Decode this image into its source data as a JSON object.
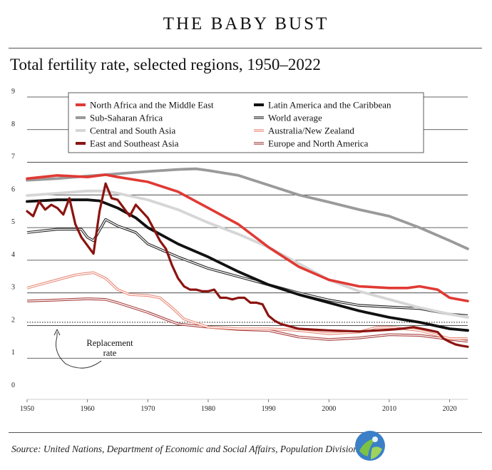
{
  "header": {
    "banner": "THE BABY BUST",
    "subtitle": "Total fertility rate, selected regions, 1950–2022"
  },
  "footer": {
    "source": "Source: United Nations, Department of Economic and Social Affairs, Population Division"
  },
  "colors": {
    "north_africa": "#e03a34",
    "sub_saharan": "#9a9a9a",
    "central_south_asia": "#d6d6d6",
    "east_se_asia": "#8b1410",
    "latin_america": "#111111",
    "world": "#222222",
    "aus_nz": "#e88a78",
    "europe_na": "#a84040",
    "grid": "#333333"
  },
  "chart_data": {
    "type": "line",
    "title": "Total fertility rate, selected regions, 1950–2022",
    "xlabel": "",
    "ylabel": "",
    "xlim": [
      1950,
      2023
    ],
    "ylim": [
      0,
      9
    ],
    "x_ticks": [
      1950,
      1960,
      1970,
      1980,
      1990,
      2000,
      2010,
      2020
    ],
    "y_ticks": [
      0,
      1,
      2,
      3,
      4,
      5,
      6,
      7,
      8,
      9
    ],
    "grid": true,
    "legend_position": "top",
    "annotation": {
      "replacement_level": 2.1,
      "label_line1": "Replacement",
      "label_line2": "rate"
    },
    "series": [
      {
        "name": "North Africa and the Middle East",
        "key": "north_africa",
        "style": "solid",
        "x": [
          1950,
          1955,
          1960,
          1963,
          1965,
          1970,
          1975,
          1980,
          1985,
          1990,
          1995,
          2000,
          2005,
          2010,
          2013,
          2015,
          2018,
          2020,
          2023
        ],
        "y": [
          6.5,
          6.6,
          6.55,
          6.62,
          6.55,
          6.4,
          6.1,
          5.6,
          5.1,
          4.4,
          3.8,
          3.4,
          3.2,
          3.15,
          3.15,
          3.2,
          3.1,
          2.85,
          2.75
        ]
      },
      {
        "name": "Sub-Saharan Africa",
        "key": "sub_saharan",
        "style": "solid",
        "x": [
          1950,
          1955,
          1960,
          1965,
          1970,
          1975,
          1978,
          1980,
          1985,
          1990,
          1995,
          2000,
          2005,
          2010,
          2015,
          2020,
          2023
        ],
        "y": [
          6.45,
          6.5,
          6.58,
          6.65,
          6.72,
          6.78,
          6.8,
          6.75,
          6.6,
          6.3,
          6.0,
          5.78,
          5.55,
          5.35,
          5.0,
          4.6,
          4.35
        ]
      },
      {
        "name": "Central and South Asia",
        "key": "central_south_asia",
        "style": "solid",
        "x": [
          1950,
          1955,
          1960,
          1963,
          1965,
          1970,
          1975,
          1980,
          1985,
          1990,
          1995,
          2000,
          2005,
          2010,
          2015,
          2020,
          2023
        ],
        "y": [
          5.98,
          6.05,
          6.12,
          6.12,
          6.05,
          5.85,
          5.55,
          5.15,
          4.8,
          4.4,
          3.9,
          3.4,
          3.05,
          2.8,
          2.55,
          2.35,
          2.25
        ]
      },
      {
        "name": "East and Southeast Asia",
        "key": "east_se_asia",
        "style": "solid",
        "x": [
          1950,
          1951,
          1952,
          1953,
          1954,
          1955,
          1956,
          1957,
          1958,
          1959,
          1960,
          1961,
          1962,
          1963,
          1964,
          1965,
          1966,
          1967,
          1968,
          1969,
          1970,
          1971,
          1972,
          1973,
          1974,
          1975,
          1976,
          1977,
          1978,
          1979,
          1980,
          1981,
          1982,
          1983,
          1984,
          1985,
          1986,
          1987,
          1988,
          1989,
          1990,
          1991,
          1992,
          1995,
          2000,
          2005,
          2010,
          2012,
          2014,
          2016,
          2018,
          2019,
          2020,
          2021,
          2022,
          2023
        ],
        "y": [
          5.5,
          5.35,
          5.8,
          5.55,
          5.7,
          5.6,
          5.4,
          5.9,
          5.1,
          4.7,
          4.45,
          4.2,
          5.5,
          6.35,
          5.9,
          5.85,
          5.6,
          5.35,
          5.7,
          5.5,
          5.3,
          4.95,
          4.6,
          4.35,
          3.85,
          3.45,
          3.2,
          3.1,
          3.1,
          3.05,
          3.05,
          3.1,
          2.85,
          2.85,
          2.8,
          2.85,
          2.85,
          2.7,
          2.7,
          2.65,
          2.3,
          2.15,
          2.05,
          1.9,
          1.85,
          1.82,
          1.87,
          1.9,
          1.95,
          1.88,
          1.8,
          1.6,
          1.5,
          1.42,
          1.38,
          1.35
        ]
      },
      {
        "name": "Latin America and the Caribbean",
        "key": "latin_america",
        "style": "solid",
        "x": [
          1950,
          1955,
          1960,
          1962,
          1965,
          1968,
          1970,
          1975,
          1980,
          1985,
          1990,
          1995,
          2000,
          2005,
          2010,
          2015,
          2020,
          2023
        ],
        "y": [
          5.8,
          5.85,
          5.85,
          5.82,
          5.6,
          5.3,
          5.0,
          4.5,
          4.1,
          3.65,
          3.25,
          2.95,
          2.7,
          2.45,
          2.25,
          2.1,
          1.9,
          1.85
        ]
      },
      {
        "name": "World average",
        "key": "world",
        "style": "double",
        "x": [
          1950,
          1955,
          1959,
          1960,
          1961,
          1963,
          1965,
          1968,
          1970,
          1975,
          1980,
          1985,
          1990,
          1995,
          2000,
          2005,
          2010,
          2015,
          2020,
          2023
        ],
        "y": [
          4.85,
          4.95,
          4.95,
          4.7,
          4.6,
          5.25,
          5.05,
          4.85,
          4.5,
          4.1,
          3.75,
          3.5,
          3.25,
          3.0,
          2.78,
          2.62,
          2.57,
          2.52,
          2.35,
          2.3
        ]
      },
      {
        "name": "Australia/New Zealand",
        "key": "aus_nz",
        "style": "double",
        "x": [
          1950,
          1953,
          1955,
          1958,
          1960,
          1961,
          1963,
          1965,
          1967,
          1970,
          1972,
          1974,
          1976,
          1980,
          1985,
          1990,
          1995,
          2000,
          2005,
          2008,
          2010,
          2015,
          2020,
          2023
        ],
        "y": [
          3.15,
          3.3,
          3.4,
          3.55,
          3.6,
          3.62,
          3.45,
          3.1,
          2.95,
          2.92,
          2.85,
          2.55,
          2.2,
          1.95,
          1.9,
          1.9,
          1.85,
          1.75,
          1.8,
          1.95,
          1.95,
          1.85,
          1.6,
          1.6
        ]
      },
      {
        "name": "Europe and North America",
        "key": "europe_na",
        "style": "double",
        "x": [
          1950,
          1955,
          1960,
          1963,
          1965,
          1970,
          1975,
          1980,
          1985,
          1990,
          1995,
          2000,
          2005,
          2010,
          2015,
          2020,
          2023
        ],
        "y": [
          2.75,
          2.78,
          2.82,
          2.8,
          2.7,
          2.4,
          2.05,
          1.95,
          1.88,
          1.85,
          1.65,
          1.57,
          1.62,
          1.72,
          1.7,
          1.58,
          1.52
        ]
      }
    ]
  }
}
